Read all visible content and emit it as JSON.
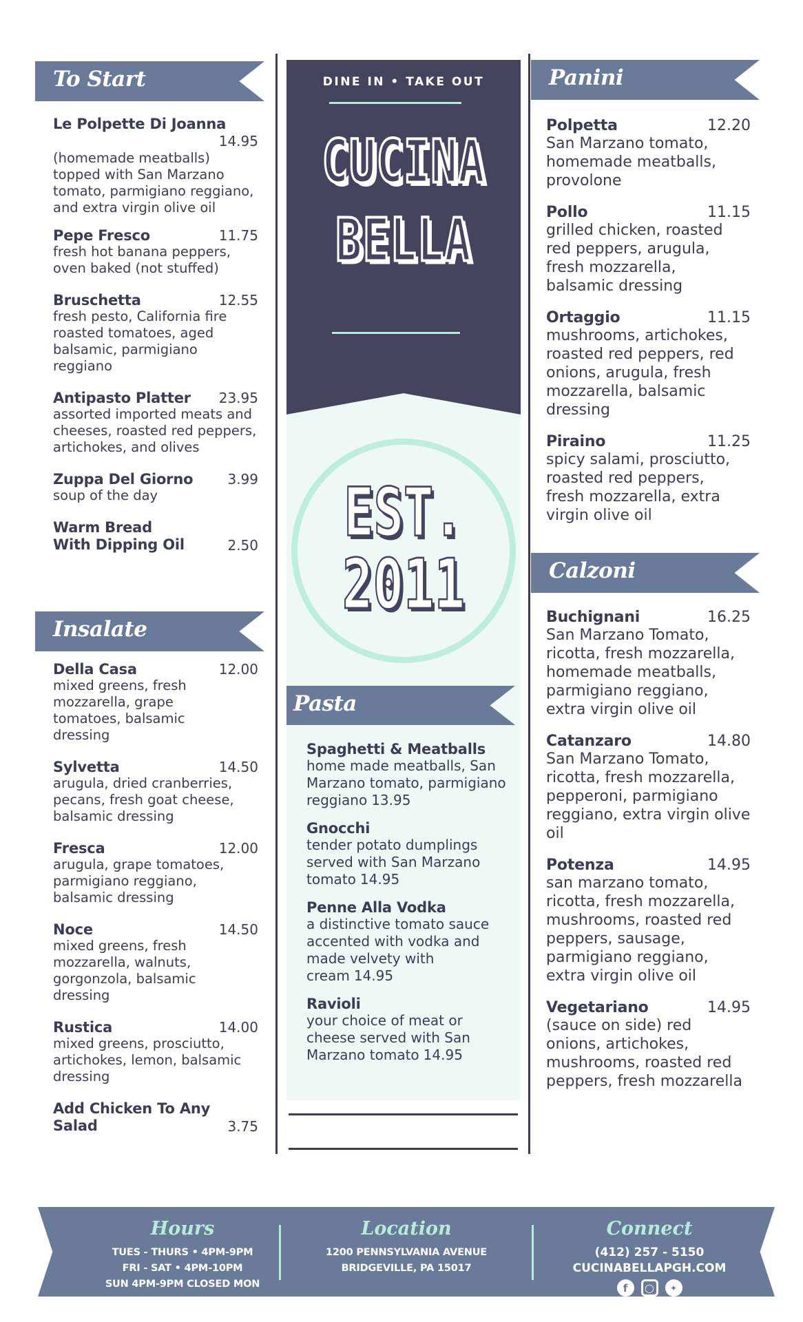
{
  "sections": {
    "to_start": {
      "title": "To Start",
      "items": [
        {
          "name": "Le Polpette Di Joanna",
          "price": "14.95",
          "desc": "(homemade meatballs) topped with San Marzano tomato, parmigiano reggiano, and extra virgin olive oil"
        },
        {
          "name": "Pepe Fresco",
          "price": "11.75",
          "desc": "fresh hot banana peppers, oven baked (not stuffed)"
        },
        {
          "name": "Bruschetta",
          "price": "12.55",
          "desc": "fresh pesto, California fire roasted tomatoes, aged balsamic, parmigiano reggiano"
        },
        {
          "name": "Antipasto Platter",
          "price": "23.95",
          "desc": "assorted imported meats and cheeses, roasted red peppers, artichokes, and olives"
        },
        {
          "name": "Zuppa Del Giorno",
          "price": "3.99",
          "desc": "soup of the day"
        },
        {
          "name": "Warm Bread With Dipping Oil",
          "price": "2.50",
          "desc": ""
        }
      ]
    },
    "insalate": {
      "title": "Insalate",
      "items": [
        {
          "name": "Della Casa",
          "price": "12.00",
          "desc": "mixed greens, fresh mozzarella, grape tomatoes, balsamic dressing"
        },
        {
          "name": "Sylvetta",
          "price": "14.50",
          "desc": "arugula, dried cranberries, pecans, fresh goat cheese, balsamic dressing"
        },
        {
          "name": "Fresca",
          "price": "12.00",
          "desc": "arugula, grape tomatoes, parmigiano reggiano, balsamic dressing"
        },
        {
          "name": "Noce",
          "price": "14.50",
          "desc": "mixed greens, fresh mozzarella, walnuts, gorgonzola, balsamic dressing"
        },
        {
          "name": "Rustica",
          "price": "14.00",
          "desc": "mixed greens, prosciutto, artichokes, lemon, balsamic dressing"
        },
        {
          "name": "Add Chicken To Any Salad",
          "price": "3.75",
          "desc": ""
        }
      ]
    },
    "pasta": {
      "title": "Pasta",
      "items": [
        {
          "name": "Spaghetti & Meatballs",
          "desc": "home made meatballs, San Marzano tomato, parmigiano reggiano",
          "price": "13.95"
        },
        {
          "name": "Gnocchi",
          "desc": "tender potato dumplings served with San Marzano tomato",
          "price": "14.95"
        },
        {
          "name": "Penne Alla Vodka",
          "desc": "a distinctive tomato sauce accented with vodka and made velvety with cream",
          "price": "14.95"
        },
        {
          "name": "Ravioli",
          "desc": "your choice of meat or cheese served with San Marzano tomato",
          "price": "14.95"
        }
      ]
    },
    "panini": {
      "title": "Panini",
      "items": [
        {
          "name": "Polpetta",
          "price": "12.20",
          "desc": "San Marzano tomato, homemade meatballs, provolone"
        },
        {
          "name": "Pollo",
          "price": "11.15",
          "desc": "grilled chicken, roasted red peppers, arugula, fresh mozzarella, balsamic dressing"
        },
        {
          "name": "Ortaggio",
          "price": "11.15",
          "desc": "mushrooms, artichokes, roasted red peppers, red onions, arugula, fresh mozzarella, balsamic dressing"
        },
        {
          "name": "Piraino",
          "price": "11.25",
          "desc": "spicy salami, prosciutto, roasted red peppers, fresh mozzarella, extra virgin olive oil"
        }
      ]
    },
    "calzoni": {
      "title": "Calzoni",
      "items": [
        {
          "name": "Buchignani",
          "price": "16.25",
          "desc": "San Marzano Tomato, ricotta, fresh mozzarella, homemade meatballs, parmigiano reggiano, extra virgin olive oil"
        },
        {
          "name": "Catanzaro",
          "price": "14.80",
          "desc": "San Marzano Tomato, ricotta, fresh mozzarella, pepperoni, parmigiano reggiano, extra virgin olive oil"
        },
        {
          "name": "Potenza",
          "price": "14.95",
          "desc": "san marzano tomato, ricotta, fresh mozzarella, mushrooms, roasted red peppers, sausage, parmigiano reggiano, extra virgin olive oil"
        },
        {
          "name": "Vegetariano",
          "price": "14.95",
          "desc": "(sauce on side) red onions, artichokes, mushrooms, roasted red peppers, fresh mozzarella"
        }
      ]
    }
  },
  "banner": {
    "tagline": "DINE IN • TAKE OUT",
    "name_line1": "CUCINA",
    "name_line2": "BELLA",
    "est_line1": "EST.",
    "est_line2": "2011"
  },
  "footer": {
    "hours": {
      "title": "Hours",
      "lines": [
        "TUES - THURS • 4PM-9PM",
        "FRI - SAT  •  4PM-10PM",
        "SUN 4PM-9PM CLOSED MON"
      ]
    },
    "location": {
      "title": "Location",
      "lines": [
        "1200 PENNSYLVANIA AVENUE",
        "BRIDGEVILLE, PA 15017"
      ]
    },
    "connect": {
      "title": "Connect",
      "phone": "(412) 257 - 5150",
      "website": "CUCINABELLAPGH.COM",
      "icons": [
        "facebook-icon",
        "instagram-icon",
        "twitter-icon"
      ]
    }
  },
  "colors": {
    "navy": "#45435d",
    "slate": "#6a7a99",
    "mint": "#b4ecd7",
    "mint_bg": "#eef9f5"
  }
}
